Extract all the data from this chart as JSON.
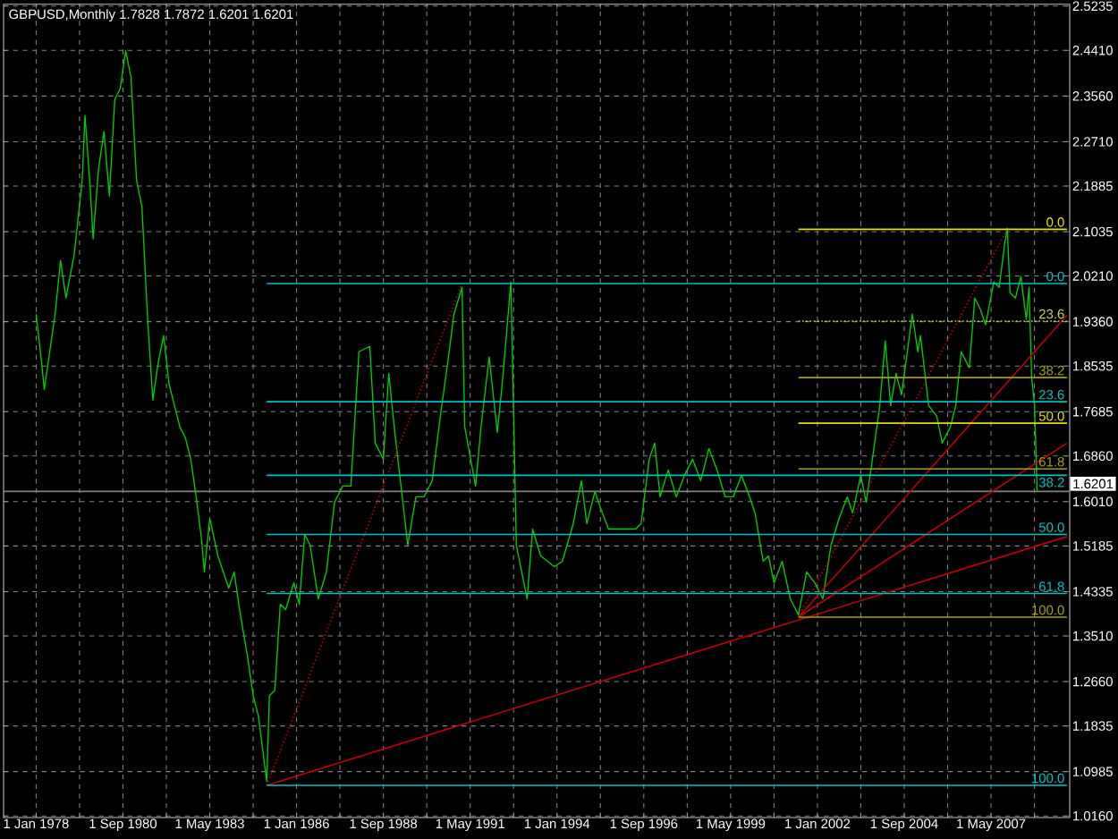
{
  "chart_data": {
    "type": "line",
    "title": "GBPUSD,Monthly  1.7828 1.7872 1.6201 1.6201",
    "xlim": [
      "1977-01",
      "2009-10"
    ],
    "ylim": [
      1.013,
      2.527
    ],
    "grid": true,
    "xticks": [
      {
        "value": "1978-01",
        "label": "1 Jan 1978"
      },
      {
        "value": "1979-05",
        "label": null
      },
      {
        "value": "1980-09",
        "label": "1 Sep 1980"
      },
      {
        "value": "1982-01",
        "label": null
      },
      {
        "value": "1983-05",
        "label": "1 May 1983"
      },
      {
        "value": "1984-09",
        "label": null
      },
      {
        "value": "1986-01",
        "label": "1 Jan 1986"
      },
      {
        "value": "1987-05",
        "label": null
      },
      {
        "value": "1988-09",
        "label": "1 Sep 1988"
      },
      {
        "value": "1990-01",
        "label": null
      },
      {
        "value": "1991-05",
        "label": "1 May 1991"
      },
      {
        "value": "1992-09",
        "label": null
      },
      {
        "value": "1994-01",
        "label": "1 Jan 1994"
      },
      {
        "value": "1995-05",
        "label": null
      },
      {
        "value": "1996-09",
        "label": "1 Sep 1996"
      },
      {
        "value": "1998-01",
        "label": null
      },
      {
        "value": "1999-05",
        "label": "1 May 1999"
      },
      {
        "value": "2000-09",
        "label": null
      },
      {
        "value": "2002-01",
        "label": "1 Jan 2002"
      },
      {
        "value": "2003-05",
        "label": null
      },
      {
        "value": "2004-09",
        "label": "1 Sep 2004"
      },
      {
        "value": "2006-01",
        "label": null
      },
      {
        "value": "2007-05",
        "label": "1 May 2007"
      },
      {
        "value": "2008-09",
        "label": null
      }
    ],
    "yticks": [
      2.5235,
      {
        "value": 2.441,
        "label": "2.4410"
      },
      {
        "value": 2.356,
        "label": "2.3560"
      },
      {
        "value": 2.271,
        "label": "2.2710"
      },
      2.1885,
      2.1035,
      {
        "value": 2.021,
        "label": "2.0210"
      },
      {
        "value": 1.936,
        "label": "1.9360"
      },
      1.8535,
      1.7685,
      {
        "value": 1.686,
        "label": "1.6860"
      },
      {
        "value": 1.601,
        "label": "1.6010"
      },
      1.5185,
      1.4335,
      {
        "value": 1.351,
        "label": "1.3510"
      },
      {
        "value": 1.266,
        "label": "1.2660"
      },
      1.1835,
      1.0985,
      {
        "value": 1.016,
        "label": "1.0160"
      }
    ],
    "ref_lines": [
      {
        "axis": "y",
        "value": 1.6201,
        "label": "1.6201",
        "color": "#808080"
      }
    ],
    "series": [
      {
        "color": "#00d000",
        "x": [
          "1978-01",
          "1978-03",
          "1978-04",
          "1978-08",
          "1978-10",
          "1978-12",
          "1979-03",
          "1979-06",
          "1979-07",
          "1979-09",
          "1979-10",
          "1979-12",
          "1980-02",
          "1980-04",
          "1980-06",
          "1980-08",
          "1980-10",
          "1980-12",
          "1981-02",
          "1981-04",
          "1981-06",
          "1981-08",
          "1981-10",
          "1981-12",
          "1982-02",
          "1982-06",
          "1982-08",
          "1982-10",
          "1982-12",
          "1983-02",
          "1983-03",
          "1983-05",
          "1983-08",
          "1983-12",
          "1984-02",
          "1984-04",
          "1984-07",
          "1984-09",
          "1984-11",
          "1985-01",
          "1985-02",
          "1985-03",
          "1985-05",
          "1985-07",
          "1985-09",
          "1985-12",
          "1986-02",
          "1986-04",
          "1986-06",
          "1986-09",
          "1986-12",
          "1987-03",
          "1987-06",
          "1987-09",
          "1987-12",
          "1988-04",
          "1988-06",
          "1988-09",
          "1988-11",
          "1989-01",
          "1989-06",
          "1989-09",
          "1989-12",
          "1990-03",
          "1990-06",
          "1990-09",
          "1990-11",
          "1991-02",
          "1991-03",
          "1991-07",
          "1991-09",
          "1991-12",
          "1992-03",
          "1992-05",
          "1992-08",
          "1992-09",
          "1992-10",
          "1993-02",
          "1993-04",
          "1993-07",
          "1993-12",
          "1994-03",
          "1994-07",
          "1994-10",
          "1994-12",
          "1995-03",
          "1995-05",
          "1995-08",
          "1995-12",
          "1996-06",
          "1996-08",
          "1996-11",
          "1997-01",
          "1997-03",
          "1997-06",
          "1997-09",
          "1997-12",
          "1998-03",
          "1998-06",
          "1998-09",
          "1998-12",
          "1999-03",
          "1999-06",
          "1999-09",
          "1999-12",
          "2000-02",
          "2000-05",
          "2000-07",
          "2000-09",
          "2000-12",
          "2001-03",
          "2001-06",
          "2001-09",
          "2001-12",
          "2002-03",
          "2002-06",
          "2002-09",
          "2002-12",
          "2003-02",
          "2003-05",
          "2003-07",
          "2003-09",
          "2003-12",
          "2004-02",
          "2004-04",
          "2004-06",
          "2004-08",
          "2004-12",
          "2005-02",
          "2005-03",
          "2005-06",
          "2005-09",
          "2005-11",
          "2006-02",
          "2006-04",
          "2006-06",
          "2006-09",
          "2006-11",
          "2007-01",
          "2007-03",
          "2007-06",
          "2007-08",
          "2007-10",
          "2007-11",
          "2007-12",
          "2008-02",
          "2008-04",
          "2008-06",
          "2008-07",
          "2008-08",
          "2008-09",
          "2008-10"
        ],
        "values": [
          1.95,
          1.86,
          1.81,
          1.95,
          2.05,
          1.98,
          2.06,
          2.2,
          2.32,
          2.18,
          2.09,
          2.22,
          2.29,
          2.17,
          2.35,
          2.37,
          2.44,
          2.39,
          2.2,
          2.15,
          1.95,
          1.79,
          1.86,
          1.91,
          1.82,
          1.74,
          1.72,
          1.68,
          1.61,
          1.53,
          1.47,
          1.57,
          1.5,
          1.44,
          1.47,
          1.4,
          1.31,
          1.24,
          1.2,
          1.12,
          1.08,
          1.24,
          1.25,
          1.41,
          1.4,
          1.45,
          1.41,
          1.54,
          1.52,
          1.42,
          1.47,
          1.6,
          1.63,
          1.63,
          1.88,
          1.89,
          1.71,
          1.68,
          1.84,
          1.74,
          1.52,
          1.61,
          1.61,
          1.64,
          1.76,
          1.87,
          1.95,
          2.0,
          1.74,
          1.63,
          1.74,
          1.87,
          1.73,
          1.83,
          2.01,
          1.77,
          1.52,
          1.42,
          1.55,
          1.5,
          1.48,
          1.49,
          1.56,
          1.64,
          1.56,
          1.62,
          1.59,
          1.55,
          1.55,
          1.55,
          1.56,
          1.68,
          1.71,
          1.61,
          1.66,
          1.61,
          1.65,
          1.68,
          1.64,
          1.7,
          1.66,
          1.61,
          1.61,
          1.65,
          1.61,
          1.58,
          1.49,
          1.5,
          1.45,
          1.49,
          1.42,
          1.39,
          1.47,
          1.45,
          1.42,
          1.52,
          1.57,
          1.61,
          1.58,
          1.65,
          1.6,
          1.67,
          1.78,
          1.9,
          1.78,
          1.84,
          1.8,
          1.95,
          1.88,
          1.91,
          1.78,
          1.76,
          1.71,
          1.74,
          1.78,
          1.88,
          1.85,
          1.98,
          1.96,
          1.93,
          2.01,
          2.0,
          2.08,
          2.11,
          1.99,
          1.98,
          2.02,
          1.94,
          2.0,
          1.83,
          1.7828,
          1.6201
        ]
      },
      {
        "color": "#c00000",
        "line_style": "dotted",
        "x": [
          "1985-02",
          "1991-02"
        ],
        "values": [
          1.073,
          2.007
        ]
      },
      {
        "color": "#c00000",
        "x": [
          "1985-02",
          "2009-09"
        ],
        "values": [
          1.073,
          1.536
        ]
      },
      {
        "color": "#c00000",
        "line_style": "dotted",
        "x": [
          "2001-06",
          "2007-11"
        ],
        "values": [
          1.386,
          2.108
        ]
      },
      {
        "color": "#c00000",
        "x": [
          "2001-06",
          "2009-09"
        ],
        "values": [
          1.386,
          1.948
        ]
      },
      {
        "color": "#c00000",
        "x": [
          "2001-06",
          "2009-09"
        ],
        "values": [
          1.386,
          1.71
        ]
      },
      {
        "name": "0.0",
        "color": "#00c0c0",
        "x": [
          "1985-02",
          "2009-09"
        ],
        "values": [
          2.007,
          2.007
        ]
      },
      {
        "name": "23.6",
        "color": "#00c0c0",
        "x": [
          "1985-02",
          "2009-09"
        ],
        "values": [
          1.787,
          1.787
        ]
      },
      {
        "name": "38.2",
        "color": "#00c0c0",
        "x": [
          "1985-02",
          "2009-09"
        ],
        "values": [
          1.65,
          1.65
        ]
      },
      {
        "name": "50.0",
        "color": "#00c0c0",
        "x": [
          "1985-02",
          "2009-09"
        ],
        "values": [
          1.54,
          1.54
        ]
      },
      {
        "name": "61.8",
        "color": "#00c0c0",
        "x": [
          "1985-02",
          "2009-09"
        ],
        "values": [
          1.43,
          1.43
        ]
      },
      {
        "name": "100.0",
        "color": "#00c0c0",
        "x": [
          "1985-02",
          "2009-09"
        ],
        "values": [
          1.073,
          1.073
        ]
      },
      {
        "name": "0.0",
        "color": "#e0e000",
        "x": [
          "2001-06",
          "2009-09"
        ],
        "values": [
          2.108,
          2.108
        ]
      },
      {
        "name": "23.6",
        "color": "#d0d060",
        "line_style": "dotted",
        "x": [
          "2001-06",
          "2009-09"
        ],
        "values": [
          1.937,
          1.937
        ]
      },
      {
        "name": "38.2",
        "color": "#a0a000",
        "x": [
          "2001-06",
          "2009-09"
        ],
        "values": [
          1.832,
          1.832
        ]
      },
      {
        "name": "50.0",
        "color": "#e0e000",
        "x": [
          "2001-06",
          "2009-09"
        ],
        "values": [
          1.747,
          1.747
        ]
      },
      {
        "name": "61.8",
        "color": "#a0a000",
        "x": [
          "2001-06",
          "2009-09"
        ],
        "values": [
          1.662,
          1.662
        ]
      },
      {
        "name": "100.0",
        "color": "#a0a000",
        "x": [
          "2001-06",
          "2009-09"
        ],
        "values": [
          1.386,
          1.386
        ]
      }
    ]
  }
}
